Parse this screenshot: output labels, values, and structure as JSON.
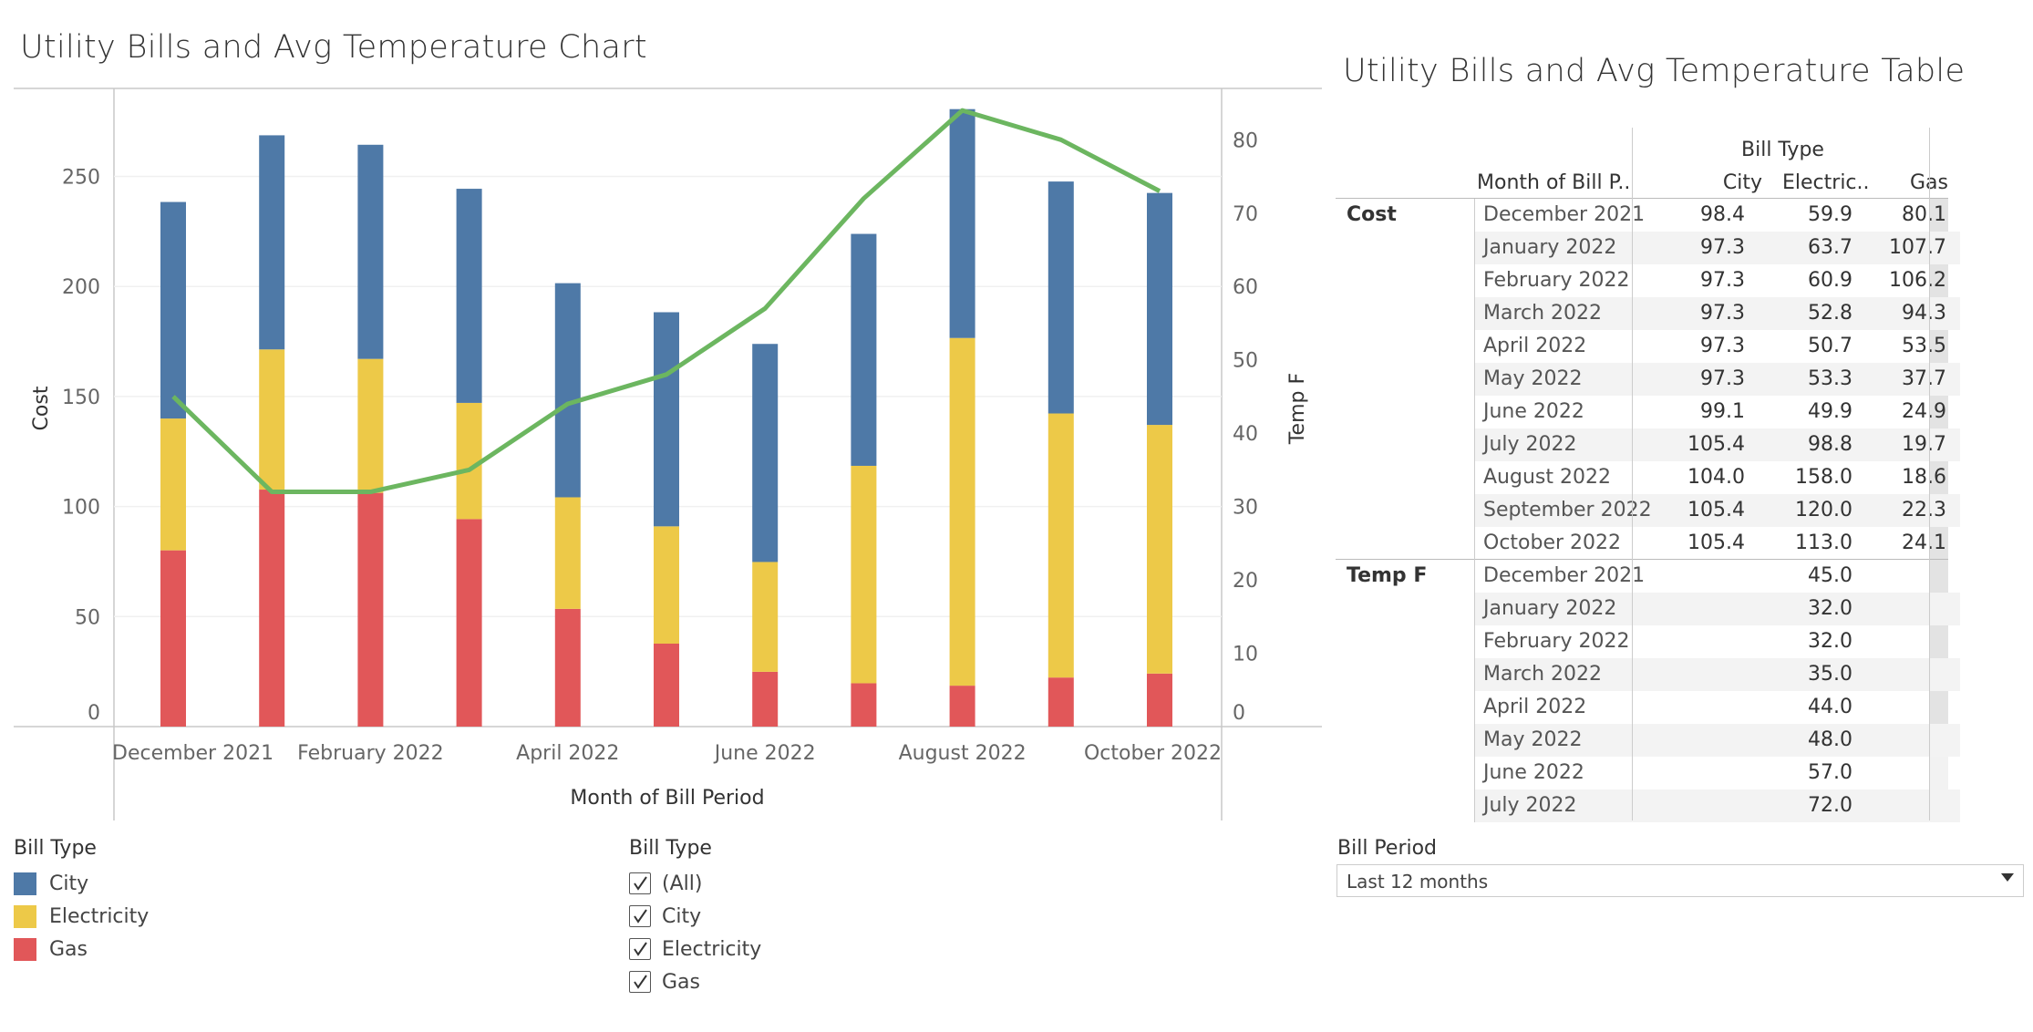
{
  "chart_title": "Utility Bills and Avg Temperature Chart",
  "table_title": "Utility Bills and Avg Temperature Table",
  "colors": {
    "city": "#4e79a7",
    "electricity": "#edc948",
    "gas": "#e15759",
    "temp": "#6cb660"
  },
  "chart_data": {
    "type": "bar",
    "stacked": true,
    "categories": [
      "December 2021",
      "January 2022",
      "February 2022",
      "March 2022",
      "April 2022",
      "May 2022",
      "June 2022",
      "July 2022",
      "August 2022",
      "September 2022",
      "October 2022"
    ],
    "x_tick_labels": [
      "December 2021",
      "February 2022",
      "April 2022",
      "June 2022",
      "August 2022",
      "October 2022"
    ],
    "series": [
      {
        "name": "Gas",
        "values": [
          80.1,
          107.7,
          106.2,
          94.3,
          53.5,
          37.7,
          24.9,
          19.7,
          18.6,
          22.3,
          24.1
        ]
      },
      {
        "name": "Electricity",
        "values": [
          59.9,
          63.7,
          60.9,
          52.8,
          50.7,
          53.3,
          49.9,
          98.8,
          158.0,
          120.0,
          113.0
        ]
      },
      {
        "name": "City",
        "values": [
          98.4,
          97.3,
          97.3,
          97.3,
          97.3,
          97.3,
          99.1,
          105.4,
          104.0,
          105.4,
          105.4
        ]
      }
    ],
    "line_series": {
      "name": "Temp F",
      "axis": "right",
      "values": [
        45.0,
        32.0,
        32.0,
        35.0,
        44.0,
        48.0,
        57.0,
        72.0,
        84.0,
        80.0,
        73.0
      ]
    },
    "xlabel": "Month of Bill Period",
    "ylabel": "Cost",
    "y2label": "Temp F",
    "ylim": [
      0,
      290
    ],
    "y_ticks": [
      0,
      50,
      100,
      150,
      200,
      250
    ],
    "y2lim": [
      0,
      87
    ],
    "y2_ticks": [
      0,
      10,
      20,
      30,
      40,
      50,
      60,
      70,
      80
    ]
  },
  "legend": {
    "title": "Bill Type",
    "items": [
      {
        "label": "City"
      },
      {
        "label": "Electricity"
      },
      {
        "label": "Gas"
      }
    ]
  },
  "filter": {
    "title": "Bill Type",
    "options": [
      {
        "label": "(All)"
      },
      {
        "label": "City"
      },
      {
        "label": "Electricity"
      },
      {
        "label": "Gas"
      }
    ]
  },
  "table": {
    "header_group": "Bill Type",
    "header_row": "Month of Bill P..",
    "columns": [
      "City",
      "Electric..",
      "Gas"
    ],
    "cost_label": "Cost",
    "temp_label": "Temp F",
    "cost_rows": [
      {
        "month": "December 2021",
        "city": "98.4",
        "electric": "59.9",
        "gas": "80.1"
      },
      {
        "month": "January 2022",
        "city": "97.3",
        "electric": "63.7",
        "gas": "107.7"
      },
      {
        "month": "February 2022",
        "city": "97.3",
        "electric": "60.9",
        "gas": "106.2"
      },
      {
        "month": "March 2022",
        "city": "97.3",
        "electric": "52.8",
        "gas": "94.3"
      },
      {
        "month": "April 2022",
        "city": "97.3",
        "electric": "50.7",
        "gas": "53.5"
      },
      {
        "month": "May 2022",
        "city": "97.3",
        "electric": "53.3",
        "gas": "37.7"
      },
      {
        "month": "June 2022",
        "city": "99.1",
        "electric": "49.9",
        "gas": "24.9"
      },
      {
        "month": "July 2022",
        "city": "105.4",
        "electric": "98.8",
        "gas": "19.7"
      },
      {
        "month": "August 2022",
        "city": "104.0",
        "electric": "158.0",
        "gas": "18.6"
      },
      {
        "month": "September 2022",
        "city": "105.4",
        "electric": "120.0",
        "gas": "22.3"
      },
      {
        "month": "October 2022",
        "city": "105.4",
        "electric": "113.0",
        "gas": "24.1"
      }
    ],
    "temp_rows": [
      {
        "month": "December 2021",
        "value": "45.0"
      },
      {
        "month": "January 2022",
        "value": "32.0"
      },
      {
        "month": "February 2022",
        "value": "32.0"
      },
      {
        "month": "March 2022",
        "value": "35.0"
      },
      {
        "month": "April 2022",
        "value": "44.0"
      },
      {
        "month": "May 2022",
        "value": "48.0"
      },
      {
        "month": "June 2022",
        "value": "57.0"
      },
      {
        "month": "July 2022",
        "value": "72.0"
      }
    ]
  },
  "bill_period": {
    "title": "Bill Period",
    "selected": "Last 12 months"
  }
}
